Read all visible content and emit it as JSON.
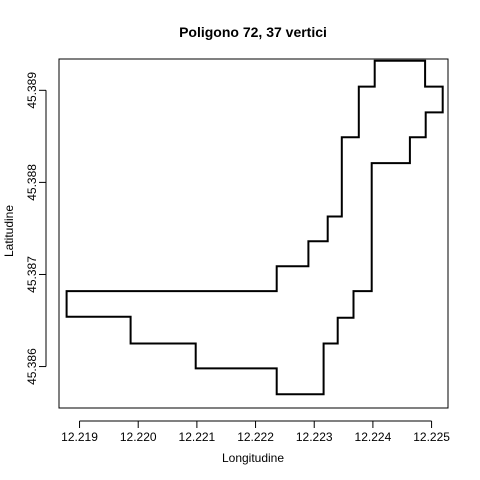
{
  "chart_data": {
    "type": "line",
    "title": "Poligono 72, 37 vertici",
    "xlabel": "Longitudine",
    "ylabel": "Latitudine",
    "xlim": [
      12.21865,
      12.22528
    ],
    "ylim": [
      45.38555,
      45.38934
    ],
    "x_ticks": [
      12.219,
      12.22,
      12.221,
      12.222,
      12.223,
      12.224,
      12.225
    ],
    "x_tick_labels": [
      "12.219",
      "12.220",
      "12.221",
      "12.222",
      "12.223",
      "12.224",
      "12.225"
    ],
    "y_ticks": [
      45.386,
      45.387,
      45.388,
      45.389
    ],
    "y_tick_labels": [
      "45.386",
      "45.387",
      "45.388",
      "45.389"
    ],
    "grid": false,
    "series": [
      {
        "closed": true,
        "color": "#000000",
        "x": [
          12.21878,
          12.21878,
          12.21987,
          12.21987,
          12.22098,
          12.22098,
          12.22236,
          12.22236,
          12.22316,
          12.22316,
          12.2234,
          12.2234,
          12.22367,
          12.22367,
          12.22398,
          12.22398,
          12.22463,
          12.22463,
          12.2249,
          12.2249,
          12.22519,
          12.22519,
          12.22489,
          12.22489,
          12.22403,
          12.22403,
          12.22376,
          12.22376,
          12.22347,
          12.22347,
          12.22323,
          12.22323,
          12.2229,
          12.2229,
          12.22236,
          12.22236,
          12.21878
        ],
        "y": [
          45.38682,
          45.38654,
          45.38654,
          45.38625,
          45.38625,
          45.38598,
          45.38598,
          45.3857,
          45.3857,
          45.38625,
          45.38625,
          45.38653,
          45.38653,
          45.38682,
          45.38682,
          45.38821,
          45.38821,
          45.38849,
          45.38849,
          45.38876,
          45.38876,
          45.38904,
          45.38904,
          45.38932,
          45.38932,
          45.38904,
          45.38904,
          45.38849,
          45.38849,
          45.38763,
          45.38763,
          45.38736,
          45.38736,
          45.38709,
          45.38709,
          45.38682,
          45.38682
        ]
      }
    ]
  }
}
